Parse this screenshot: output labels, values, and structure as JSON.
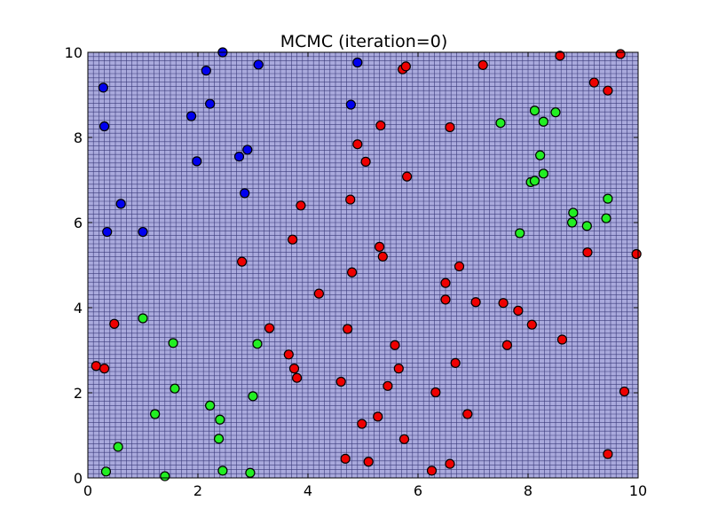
{
  "chart_data": {
    "type": "scatter",
    "title": "MCMC (iteration=0)",
    "xlabel": "",
    "ylabel": "",
    "xlim": [
      0,
      10
    ],
    "ylim": [
      0,
      10
    ],
    "xticks": [
      "0",
      "2",
      "4",
      "6",
      "8",
      "10"
    ],
    "yticks": [
      "0",
      "2",
      "4",
      "6",
      "8",
      "10"
    ],
    "grid": true,
    "background_color": "#aaaadd",
    "grid_color": "#3a3a7a",
    "series": [
      {
        "color": "#0000ee",
        "points": [
          [
            0.28,
            9.17
          ],
          [
            0.3,
            8.26
          ],
          [
            0.35,
            5.78
          ],
          [
            0.6,
            6.44
          ],
          [
            1.0,
            5.78
          ],
          [
            1.88,
            8.5
          ],
          [
            1.98,
            7.44
          ],
          [
            2.15,
            9.57
          ],
          [
            2.22,
            8.79
          ],
          [
            2.45,
            10.0
          ],
          [
            2.75,
            7.55
          ],
          [
            2.85,
            6.69
          ],
          [
            2.9,
            7.71
          ],
          [
            3.1,
            9.71
          ],
          [
            4.78,
            8.77
          ],
          [
            4.9,
            9.76
          ]
        ]
      },
      {
        "color": "#22ee22",
        "points": [
          [
            0.33,
            0.15
          ],
          [
            0.55,
            0.73
          ],
          [
            1.0,
            3.75
          ],
          [
            1.22,
            1.5
          ],
          [
            1.4,
            0.04
          ],
          [
            1.55,
            3.17
          ],
          [
            1.58,
            2.1
          ],
          [
            2.22,
            1.7
          ],
          [
            2.38,
            0.92
          ],
          [
            2.4,
            1.37
          ],
          [
            2.45,
            0.17
          ],
          [
            2.95,
            0.12
          ],
          [
            3.0,
            1.92
          ],
          [
            3.08,
            3.15
          ],
          [
            7.5,
            8.34
          ],
          [
            7.85,
            5.75
          ],
          [
            8.05,
            6.95
          ],
          [
            8.12,
            6.98
          ],
          [
            8.12,
            8.63
          ],
          [
            8.22,
            7.58
          ],
          [
            8.28,
            7.15
          ],
          [
            8.28,
            8.37
          ],
          [
            8.5,
            8.59
          ],
          [
            8.8,
            6.0
          ],
          [
            8.82,
            6.23
          ],
          [
            9.07,
            5.92
          ],
          [
            9.42,
            6.1
          ],
          [
            9.45,
            6.56
          ]
        ]
      },
      {
        "color": "#ee0000",
        "points": [
          [
            0.15,
            2.63
          ],
          [
            0.3,
            2.57
          ],
          [
            0.48,
            3.62
          ],
          [
            2.8,
            5.08
          ],
          [
            3.3,
            3.52
          ],
          [
            3.65,
            2.9
          ],
          [
            3.72,
            5.6
          ],
          [
            3.75,
            2.57
          ],
          [
            3.8,
            2.35
          ],
          [
            3.87,
            6.4
          ],
          [
            4.2,
            4.33
          ],
          [
            4.6,
            2.26
          ],
          [
            4.68,
            0.45
          ],
          [
            4.72,
            3.5
          ],
          [
            4.77,
            6.54
          ],
          [
            4.8,
            4.83
          ],
          [
            4.9,
            7.84
          ],
          [
            4.98,
            1.27
          ],
          [
            5.05,
            7.43
          ],
          [
            5.1,
            0.38
          ],
          [
            5.27,
            1.44
          ],
          [
            5.3,
            5.43
          ],
          [
            5.32,
            8.28
          ],
          [
            5.36,
            5.2
          ],
          [
            5.45,
            2.16
          ],
          [
            5.58,
            3.12
          ],
          [
            5.65,
            2.57
          ],
          [
            5.72,
            9.6
          ],
          [
            5.75,
            0.91
          ],
          [
            5.78,
            9.67
          ],
          [
            5.8,
            7.08
          ],
          [
            6.25,
            0.17
          ],
          [
            6.32,
            2.01
          ],
          [
            6.5,
            4.58
          ],
          [
            6.5,
            4.19
          ],
          [
            6.58,
            0.33
          ],
          [
            6.58,
            8.24
          ],
          [
            6.68,
            2.7
          ],
          [
            6.75,
            4.97
          ],
          [
            6.9,
            1.5
          ],
          [
            7.05,
            4.13
          ],
          [
            7.18,
            9.7
          ],
          [
            7.55,
            4.11
          ],
          [
            7.62,
            3.12
          ],
          [
            7.82,
            3.93
          ],
          [
            8.07,
            3.6
          ],
          [
            8.58,
            9.92
          ],
          [
            8.62,
            3.25
          ],
          [
            9.2,
            9.29
          ],
          [
            9.08,
            5.3
          ],
          [
            9.45,
            9.1
          ],
          [
            9.45,
            0.56
          ],
          [
            9.68,
            9.96
          ],
          [
            9.75,
            2.03
          ],
          [
            9.97,
            5.26
          ]
        ]
      }
    ]
  }
}
